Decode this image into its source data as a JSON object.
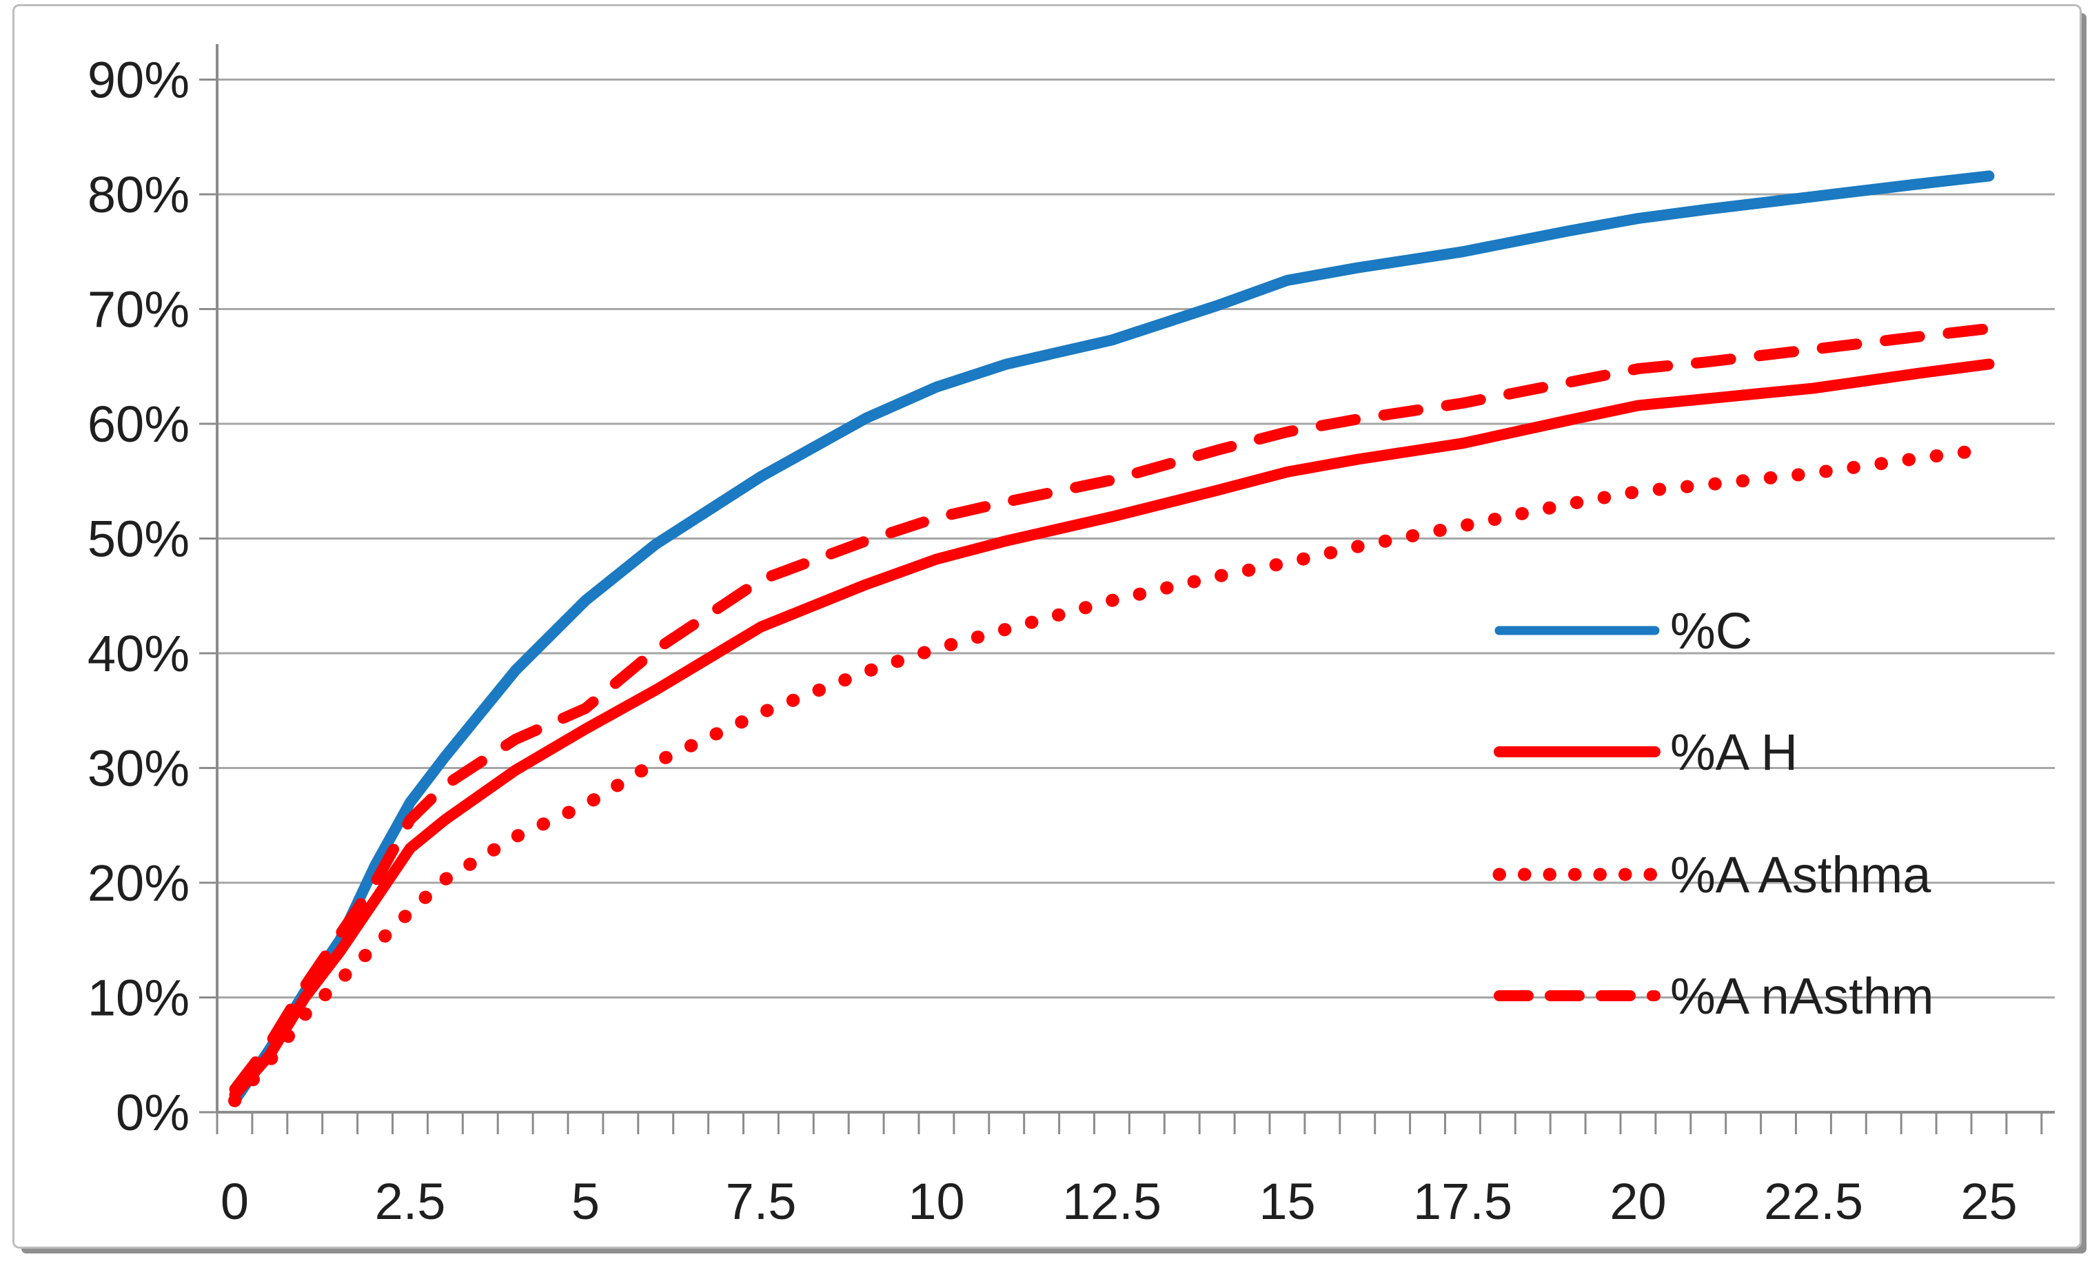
{
  "chart_data": {
    "type": "line",
    "title": "",
    "xlabel": "",
    "ylabel": "",
    "xlim": [
      0,
      25
    ],
    "ylim": [
      0,
      90
    ],
    "grid": "horizontal",
    "legend_position": "middle-right",
    "x_tick_labels": [
      "0",
      "2.5",
      "5",
      "7.5",
      "10",
      "12.5",
      "15",
      "17.5",
      "20",
      "22.5",
      "25"
    ],
    "x_tick_values": [
      0,
      2.5,
      5,
      7.5,
      10,
      12.5,
      15,
      17.5,
      20,
      22.5,
      25
    ],
    "x_minor_tick_step": 0.5,
    "y_tick_labels": [
      "0%",
      "10%",
      "20%",
      "30%",
      "40%",
      "50%",
      "60%",
      "70%",
      "80%",
      "90%"
    ],
    "y_tick_values": [
      0,
      10,
      20,
      30,
      40,
      50,
      60,
      70,
      80,
      90
    ],
    "x": [
      0,
      0.5,
      1,
      1.5,
      2,
      2.5,
      3,
      4,
      5,
      6,
      7.5,
      9,
      10,
      11,
      12.5,
      14,
      15,
      16,
      17.5,
      19,
      20,
      21,
      22.5,
      24,
      25
    ],
    "series": [
      {
        "name": "%C",
        "color": "#1b7ac1",
        "style": "solid",
        "values": [
          1,
          5.5,
          10.5,
          15,
          21.5,
          27,
          31,
          38.5,
          44.6,
          49.5,
          55.4,
          60.5,
          63.2,
          65.2,
          67.3,
          70.3,
          72.5,
          73.6,
          75.0,
          76.8,
          77.9,
          78.7,
          79.8,
          80.9,
          81.6
        ]
      },
      {
        "name": "%A H",
        "color": "#ff0000",
        "style": "solid",
        "values": [
          1.5,
          5,
          10,
          14,
          18.5,
          23,
          25.5,
          29.8,
          33.4,
          36.8,
          42.3,
          46,
          48.2,
          49.8,
          51.9,
          54.2,
          55.8,
          56.9,
          58.3,
          60.3,
          61.6,
          62.2,
          63.1,
          64.4,
          65.2
        ]
      },
      {
        "name": "%A Asthma",
        "color": "#ff0000",
        "style": "dotted",
        "values": [
          1,
          4.5,
          8.5,
          11.5,
          14.5,
          17.5,
          20.3,
          24,
          26.8,
          30.5,
          34.8,
          38.4,
          40.4,
          42.1,
          44.6,
          46.7,
          47.9,
          49.3,
          51.1,
          53,
          54.1,
          54.7,
          55.7,
          57,
          57.8
        ]
      },
      {
        "name": "%A nAsthm",
        "color": "#ff0000",
        "style": "dashed",
        "values": [
          2,
          6,
          11,
          15.5,
          20,
          25.5,
          28.5,
          32.5,
          35.2,
          40.3,
          46.4,
          49.8,
          51.8,
          53.2,
          55.1,
          57.7,
          59.3,
          60.4,
          61.8,
          63.6,
          64.8,
          65.4,
          66.5,
          67.6,
          68.3
        ]
      }
    ],
    "legend": [
      {
        "label": "%C"
      },
      {
        "label": "%A H"
      },
      {
        "label": "%A Asthma"
      },
      {
        "label": "%A nAsthm"
      }
    ]
  },
  "colors": {
    "gridline": "#a6a6a6",
    "axis": "#8c8c8c",
    "tick": "#8c8c8c",
    "text": "#1f1f1f",
    "frame_border": "#bdbdbd",
    "frame_shadow": "#8f8f8f",
    "background": "#ffffff"
  }
}
